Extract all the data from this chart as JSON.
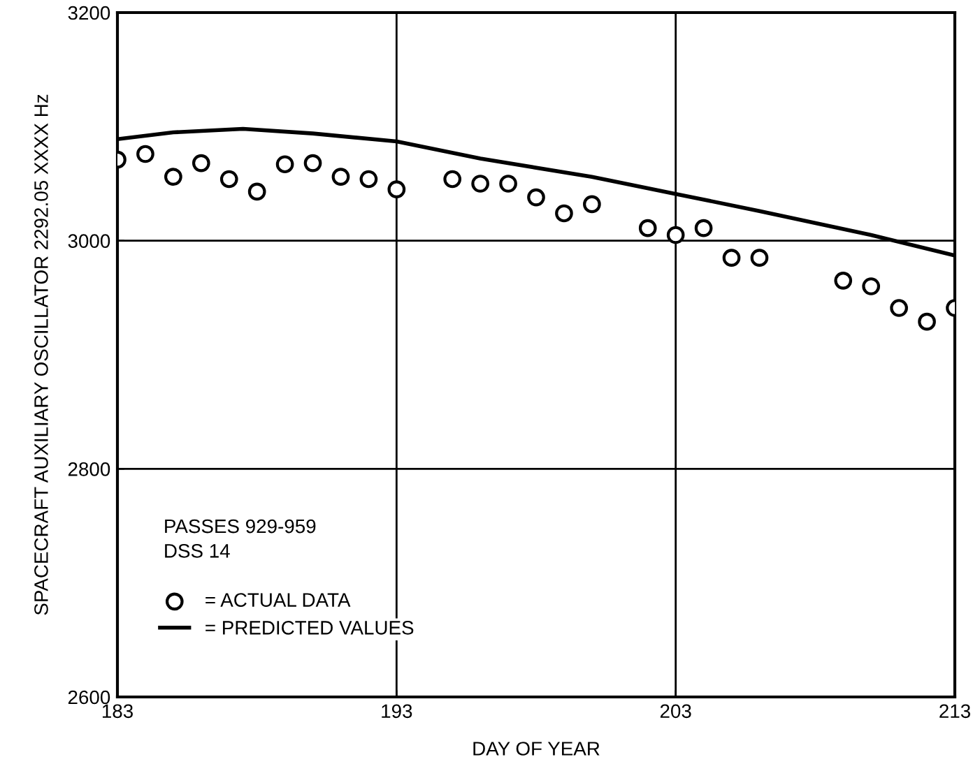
{
  "chart_data": {
    "type": "scatter",
    "xlabel": "DAY OF YEAR",
    "ylabel": "SPACECRAFT AUXILIARY OSCILLATOR 2292.05 XXXX Hz",
    "xlim": [
      183,
      213
    ],
    "xticks": [
      183,
      193,
      203,
      213
    ],
    "ylim": [
      2600,
      3200
    ],
    "yticks": [
      2600,
      2800,
      3000,
      3200
    ],
    "grid": true,
    "legend": "bottom left",
    "annotations": [
      "PASSES 929-959",
      "DSS 14"
    ],
    "series": [
      {
        "name": "= ACTUAL DATA",
        "marker": "circle",
        "color": "#000000",
        "x": [
          183,
          184,
          185,
          186,
          187,
          188,
          189,
          190,
          191,
          192,
          193,
          195,
          196,
          197,
          198,
          199,
          200,
          202,
          203,
          204,
          205,
          206,
          209,
          210,
          211,
          212,
          213
        ],
        "values": [
          3071,
          3076,
          3056,
          3068,
          3054,
          3043,
          3067,
          3068,
          3056,
          3054,
          3045,
          3054,
          3050,
          3050,
          3038,
          3024,
          3032,
          3011,
          3005,
          3011,
          2985,
          2985,
          2965,
          2960,
          2941,
          2929,
          2941
        ]
      },
      {
        "name": "= PREDICTED VALUES",
        "type": "line",
        "line_style": "solid",
        "color": "#000000",
        "x": [
          183,
          185,
          187.5,
          190,
          193,
          196,
          200,
          203,
          206,
          210,
          213
        ],
        "values": [
          3089,
          3095,
          3098,
          3094,
          3087,
          3072,
          3056,
          3041,
          3026,
          3005,
          2987
        ]
      }
    ]
  }
}
